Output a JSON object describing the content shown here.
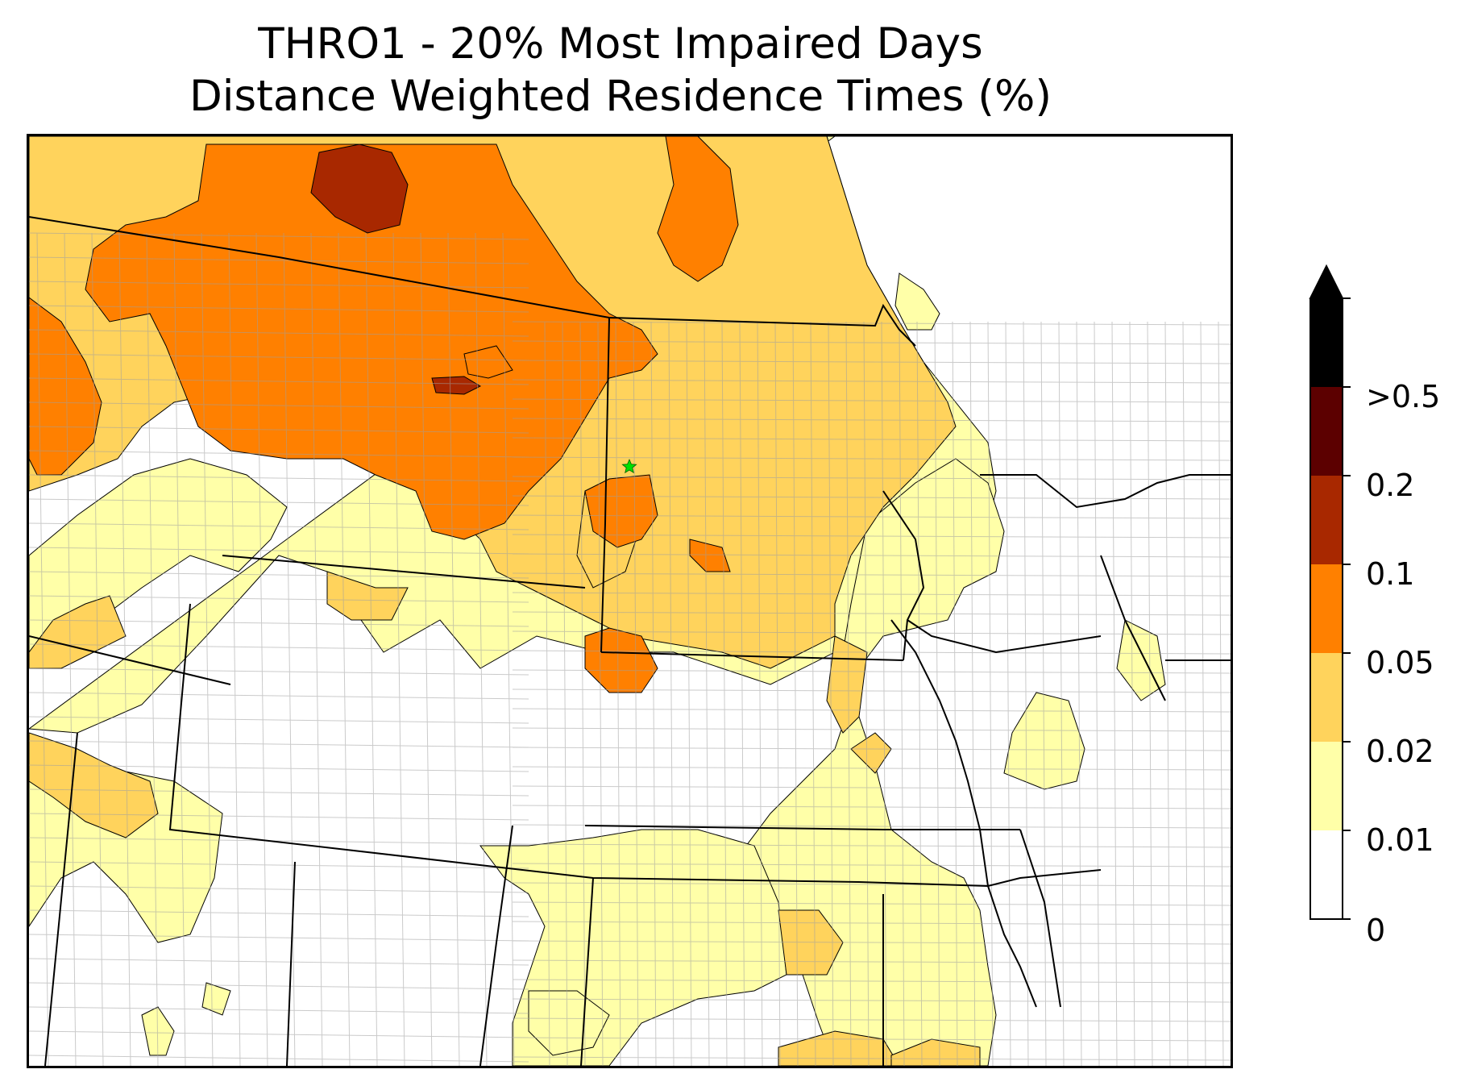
{
  "title": {
    "line1": "THRO1 - 20% Most Impaired Days",
    "line2": "Distance Weighted Residence Times (%)"
  },
  "legend": {
    "levels": [
      {
        "label": "0",
        "color": "#ffffff"
      },
      {
        "label": "0.01",
        "color": "#ffffa8"
      },
      {
        "label": "0.02",
        "color": "#ffd35c"
      },
      {
        "label": "0.05",
        "color": "#ff8000"
      },
      {
        "label": "0.1",
        "color": "#a82800"
      },
      {
        "label": "0.2",
        "color": "#5c0000"
      },
      {
        "label": ">0.5",
        "color": "#000000"
      }
    ],
    "extend_color": "#000000"
  },
  "site_marker": {
    "icon": "star-icon",
    "color": "#00e000"
  },
  "colors": {
    "state_border": "#000000",
    "county_border": "#a0a0a0",
    "contour_line": "#000000"
  }
}
